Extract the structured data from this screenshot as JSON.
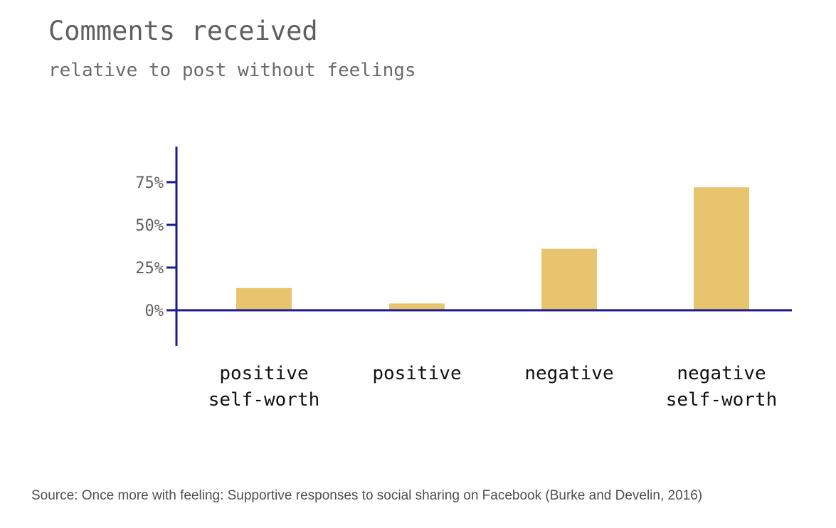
{
  "chart_data": {
    "type": "bar",
    "title": "Comments received",
    "subtitle": "relative to post without feelings",
    "categories": [
      [
        "positive",
        "self-worth"
      ],
      [
        "positive"
      ],
      [
        "negative"
      ],
      [
        "negative",
        "self-worth"
      ]
    ],
    "values": [
      13,
      4,
      36,
      72
    ],
    "yticks": [
      "0%",
      "25%",
      "50%",
      "75%"
    ],
    "ytick_values": [
      0,
      25,
      50,
      75
    ],
    "ylim": [
      -20,
      95
    ],
    "grid": false,
    "xlabel": "",
    "ylabel": "",
    "colors": {
      "bar": "#e8c46e",
      "axis": "#1a1a8c",
      "tick_text": "#5f5f5f",
      "category_text": "#111111"
    }
  },
  "source": "Source: Once more with feeling: Supportive responses to social sharing on Facebook (Burke and Develin, 2016)"
}
